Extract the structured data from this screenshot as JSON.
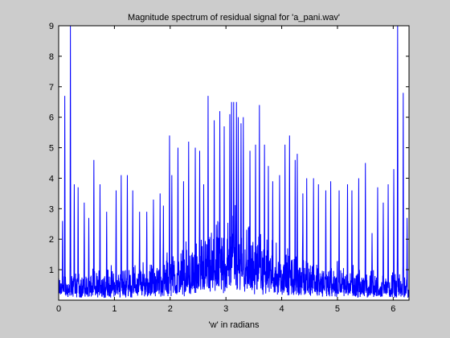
{
  "chart_data": {
    "type": "line",
    "title": "Magnitude spectrum of residual signal for 'a_pani.wav'",
    "xlabel": "'w' in radians",
    "ylabel": "",
    "xlim": [
      0,
      6.2832
    ],
    "ylim": [
      0,
      9
    ],
    "xticks": [
      "0",
      "1",
      "2",
      "3",
      "4",
      "5",
      "6"
    ],
    "yticks": [
      "1",
      "2",
      "3",
      "4",
      "5",
      "6",
      "7",
      "8",
      "9"
    ],
    "grid": false,
    "colors": {
      "line": "#0000ff",
      "background": "#cccccc",
      "plot_area": "#ffffff",
      "axes": "#000000"
    },
    "series": [
      {
        "approximate_peaks": {
          "x": [
            0.07,
            0.11,
            0.21,
            0.28,
            0.35,
            0.46,
            0.54,
            0.63,
            0.74,
            0.86,
            1.03,
            1.12,
            1.23,
            1.33,
            1.45,
            1.58,
            1.7,
            1.82,
            1.88,
            1.99,
            2.03,
            2.14,
            2.24,
            2.33,
            2.45,
            2.53,
            2.6,
            2.68,
            2.79,
            2.89,
            2.97,
            3.07,
            3.1,
            3.14,
            3.19,
            3.22,
            3.27,
            3.31,
            3.43,
            3.53,
            3.6,
            3.69,
            3.76,
            3.84,
            3.96,
            4.06,
            4.14,
            4.24,
            4.28,
            4.38,
            4.45,
            4.57,
            4.66,
            4.79,
            4.88,
            5.03,
            5.18,
            5.26,
            5.38,
            5.5,
            5.62,
            5.72,
            5.82,
            5.91,
            6.01,
            6.08,
            6.18,
            6.25
          ],
          "y": [
            2.6,
            6.7,
            9.0,
            3.8,
            3.7,
            3.2,
            2.7,
            4.6,
            3.8,
            2.9,
            3.6,
            4.1,
            4.1,
            3.6,
            2.9,
            2.9,
            3.3,
            3.5,
            3.1,
            5.4,
            4.1,
            5.0,
            3.9,
            5.2,
            5.0,
            4.9,
            3.8,
            6.7,
            5.9,
            6.2,
            5.7,
            6.1,
            6.5,
            6.5,
            6.5,
            6.0,
            5.8,
            6.0,
            4.9,
            5.1,
            6.4,
            5.1,
            4.4,
            3.9,
            4.1,
            5.1,
            5.4,
            4.6,
            4.8,
            3.5,
            4.0,
            4.0,
            3.8,
            3.6,
            3.9,
            3.6,
            3.8,
            3.6,
            4.0,
            4.5,
            2.2,
            3.7,
            3.2,
            3.8,
            4.3,
            9.0,
            6.8,
            2.7
          ]
        },
        "noise_floor": {
          "x": [
            0,
            0.5,
            1.0,
            1.5,
            2.0,
            2.5,
            3.0,
            3.14,
            3.3,
            3.8,
            4.3,
            4.8,
            5.3,
            5.8,
            6.28
          ],
          "y": [
            0.5,
            0.55,
            0.65,
            0.75,
            0.95,
            1.15,
            1.6,
            2.0,
            1.6,
            1.15,
            0.95,
            0.75,
            0.65,
            0.55,
            0.5
          ]
        }
      }
    ]
  }
}
